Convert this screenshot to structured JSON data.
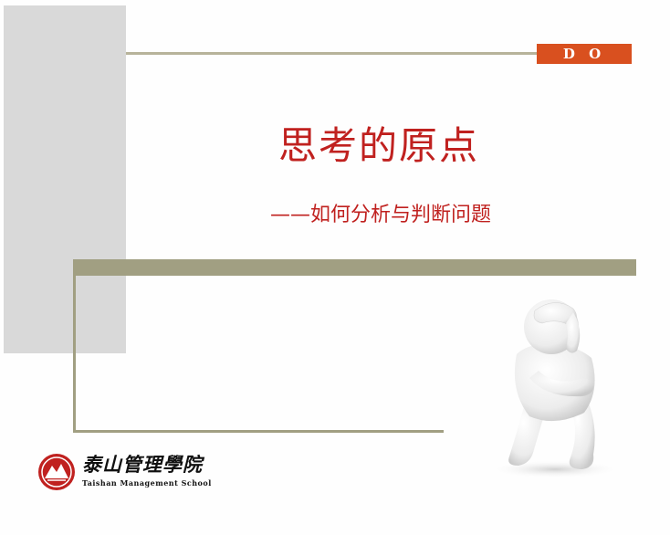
{
  "badge": {
    "text": "D O"
  },
  "title": "思考的原点",
  "subtitle": "——如何分析与判断问题",
  "logo": {
    "name_cn": "泰山管理學院",
    "name_en": "Taishan Management School"
  },
  "colors": {
    "accent_red": "#c0211f",
    "badge_orange": "#d9501f",
    "band_olive": "#a19f82",
    "gray_block": "#d9d9d9"
  },
  "icons": [
    "thinking-person-figure",
    "taishan-logo-icon"
  ]
}
